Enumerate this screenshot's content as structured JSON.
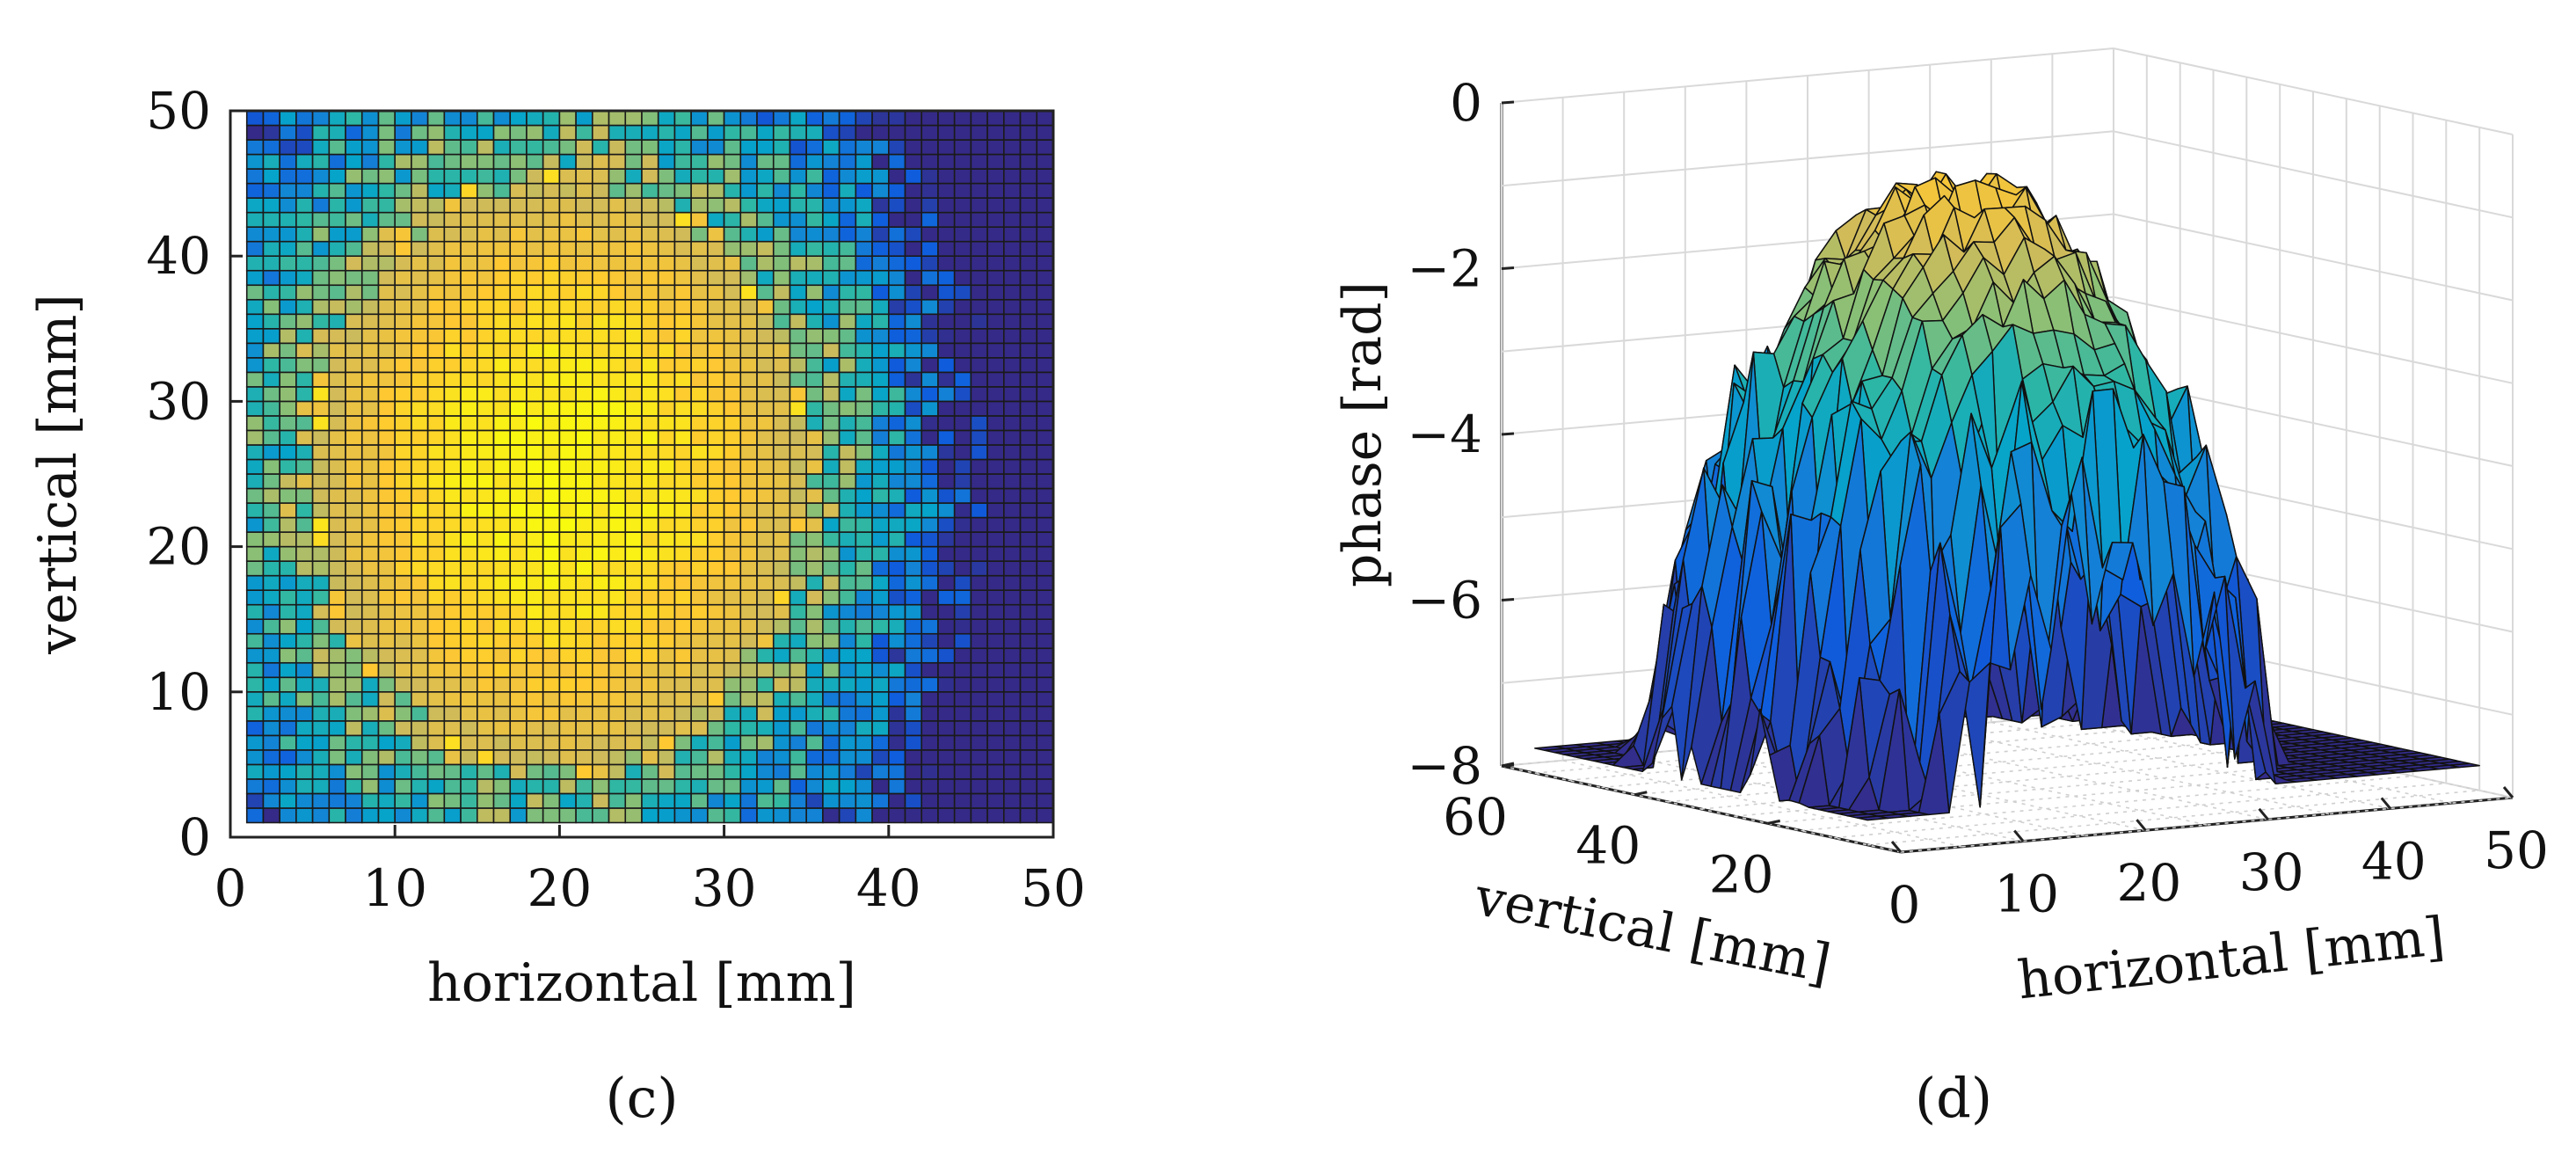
{
  "chart_data": [
    {
      "type": "heatmap",
      "panel_label": "(c)",
      "xlabel": "horizontal [mm]",
      "ylabel": "vertical [mm]",
      "xlim": [
        0,
        50
      ],
      "ylim": [
        0,
        50
      ],
      "xticks": [
        0,
        10,
        20,
        30,
        40,
        50
      ],
      "yticks": [
        0,
        10,
        20,
        30,
        40,
        50
      ],
      "grid_cells": [
        49,
        49
      ],
      "cell_size_mm": 1,
      "peak_center_mm": [
        20,
        25
      ],
      "colormap": "parula",
      "colors": [
        "#352a87",
        "#0f5cdd",
        "#1481d6",
        "#06a4ca",
        "#2eb7a4",
        "#87bf77",
        "#d1bb59",
        "#fec832",
        "#f9fb0e"
      ]
    },
    {
      "type": "surface3d",
      "panel_label": "(d)",
      "xlabel": "horizontal [mm]",
      "ylabel": "vertical [mm]",
      "zlabel": "phase [rad]",
      "xlim": [
        0,
        50
      ],
      "ylim": [
        0,
        60
      ],
      "zlim": [
        -8,
        0
      ],
      "xticks": [
        0,
        10,
        20,
        30,
        40,
        50
      ],
      "yticks": [
        20,
        40,
        60
      ],
      "zticks": [
        0,
        -2,
        -4,
        -6,
        -8
      ],
      "peak_phase_rad": -0.8,
      "edge_phase_rad": -7.5,
      "colormap": "parula"
    }
  ]
}
